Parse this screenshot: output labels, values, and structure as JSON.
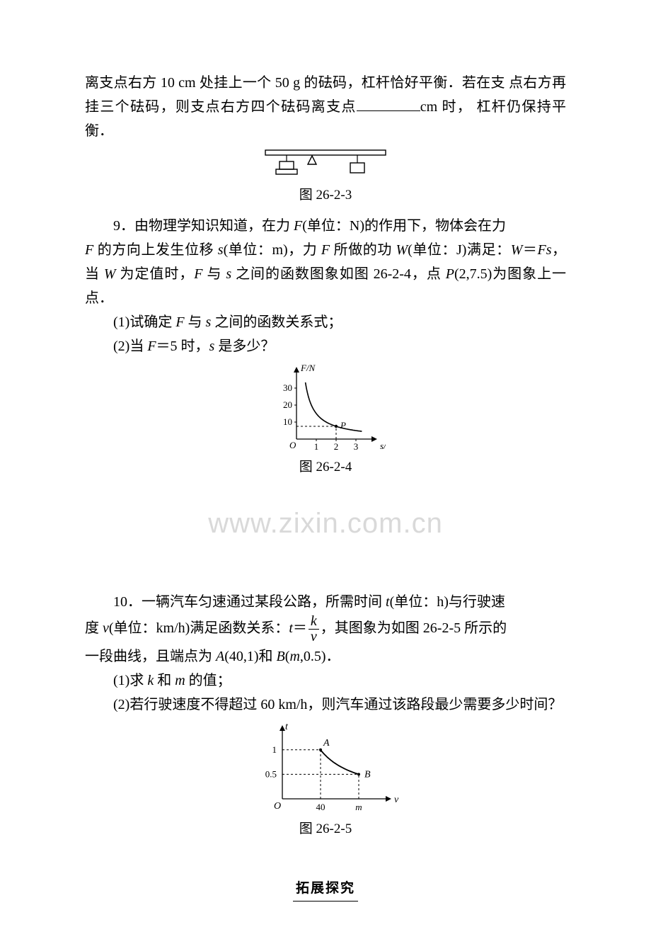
{
  "p8_line1": "离支点右方 10 cm 处挂上一个 50 g 的砝码，杠杆恰好平衡．若在支",
  "p8_line2a": "点右方再挂三个砝码，则支点右方四个砝码离支点",
  "p8_line2b": "cm 时，",
  "p8_line3": "杠杆仍保持平衡．",
  "fig3_caption": "图 26-2-3",
  "p9_a": "9．由物理学知识知道，在力 ",
  "p9_b": "F",
  "p9_c": "(单位：N)的作用下，物体会在力",
  "p9_d": "F",
  "p9_e": " 的方向上发生位移 ",
  "p9_f": "s",
  "p9_g": "(单位：m)，力 ",
  "p9_h": "F",
  "p9_i": " 所做的功 ",
  "p9_j": "W",
  "p9_k": "(单位：J)满足：",
  "p9_l": "W",
  "p9_m": "＝",
  "p9_n": "Fs",
  "p9_o": "，当 ",
  "p9_p": "W",
  "p9_q": " 为定值时，",
  "p9_r": "F",
  "p9_s": " 与 ",
  "p9_t": "s",
  "p9_u": " 之间的函数图象如图 26-2-4，点",
  "p9_v": "P",
  "p9_w": "(2,7.5)为图象上一点．",
  "q9_1a": "(1)试确定 ",
  "q9_1b": "F",
  "q9_1c": " 与 ",
  "q9_1d": "s",
  "q9_1e": " 之间的函数关系式；",
  "q9_2a": "(2)当 ",
  "q9_2b": "F",
  "q9_2c": "＝5 时，",
  "q9_2d": "s",
  "q9_2e": " 是多少？",
  "fig4": {
    "caption": "图 26-2-4",
    "y_label": "F/N",
    "x_label": "s/m",
    "y_ticks": [
      "10",
      "20",
      "30"
    ],
    "x_ticks": [
      "1",
      "2",
      "3"
    ],
    "point_label": "P",
    "origin": "O",
    "curve_color": "#000000",
    "axis_color": "#000000",
    "dash_color": "#000000",
    "bg": "#ffffff"
  },
  "watermark_text": "www.zixin.com.cn",
  "p10_a": "10．一辆汽车匀速通过某段公路，所需时间 ",
  "p10_b": "t",
  "p10_c": "(单位：h)与行驶速",
  "p10_d": "度 ",
  "p10_e": "v",
  "p10_f": "(单位：km/h)满足函数关系：",
  "p10_g": "t",
  "p10_h": "＝",
  "p10_frac_num": "k",
  "p10_frac_den": "v",
  "p10_i": "，其图象为如图 26-2-5 所示的",
  "p10_j": "一段曲线，且端点为 ",
  "p10_k": "A",
  "p10_l": "(40,1)和 ",
  "p10_m": "B",
  "p10_n": "(",
  "p10_o": "m",
  "p10_p": ",0.5)．",
  "q10_1a": "(1)求 ",
  "q10_1b": "k",
  "q10_1c": " 和 ",
  "q10_1d": "m",
  "q10_1e": " 的值；",
  "q10_2": "(2)若行驶速度不得超过 60 km/h，则汽车通过该路段最少需要多少时间？",
  "fig5": {
    "caption": "图 26-2-5",
    "y_label": "t",
    "x_label": "v",
    "y_ticks": [
      "0.5",
      "1"
    ],
    "x_ticks": [
      "40",
      "m"
    ],
    "A_label": "A",
    "B_label": "B",
    "origin": "O",
    "curve_color": "#000000",
    "axis_color": "#000000",
    "dash_color": "#000000"
  },
  "section_title": "拓展探究"
}
